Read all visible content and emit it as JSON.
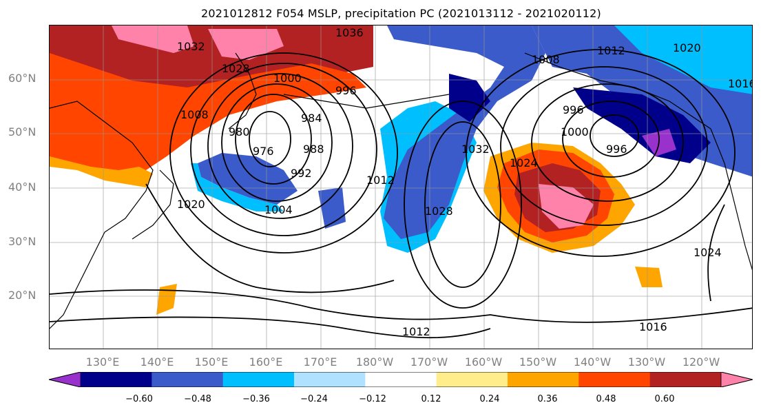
{
  "title": "2021012812 F054 MSLP, precipitation PC (2021013112 - 2021020112)",
  "lat_labels": [
    "60°N",
    "50°N",
    "40°N",
    "30°N",
    "20°N"
  ],
  "lon_labels": [
    "130°E",
    "140°E",
    "150°E",
    "160°E",
    "170°E",
    "180°W",
    "170°W",
    "160°W",
    "150°W",
    "140°W",
    "130°W",
    "120°W"
  ],
  "contour_labels": [
    "1036",
    "1032",
    "1028",
    "1000",
    "996",
    "984",
    "980",
    "976",
    "988",
    "992",
    "1004",
    "1008",
    "1012",
    "1020",
    "1032",
    "1028",
    "1024",
    "1008",
    "996",
    "1000",
    "996",
    "1012",
    "1020",
    "1016",
    "1024",
    "1012",
    "1016"
  ],
  "colorbar": {
    "ticks": [
      "−0.60",
      "−0.48",
      "−0.36",
      "−0.24",
      "−0.12",
      "0.12",
      "0.24",
      "0.36",
      "0.48",
      "0.60"
    ],
    "colors": [
      "#9932CC",
      "#00008B",
      "#3A5BC9",
      "#00BFFF",
      "#B0E2FF",
      "#FFFFFF",
      "#FFEC8B",
      "#FFA500",
      "#FF4500",
      "#B22222",
      "#FF82AB"
    ]
  }
}
